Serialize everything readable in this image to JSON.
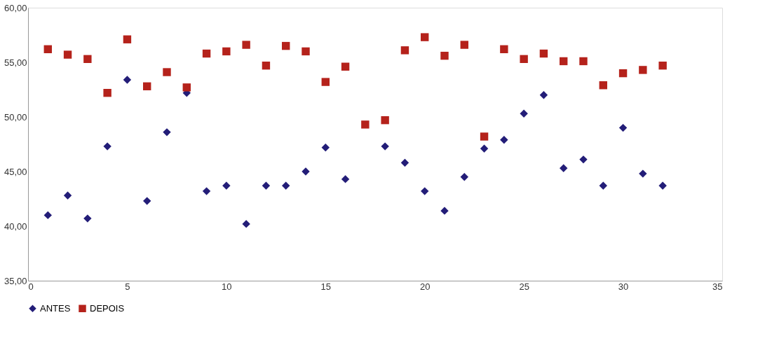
{
  "chart_data": {
    "type": "scatter",
    "x": [
      1,
      2,
      3,
      4,
      5,
      6,
      7,
      8,
      9,
      10,
      11,
      12,
      13,
      14,
      15,
      16,
      17,
      18,
      19,
      20,
      21,
      22,
      23,
      24,
      25,
      26,
      27,
      28,
      29,
      30,
      31,
      32
    ],
    "series": [
      {
        "name": "ANTES",
        "color": "#231d78",
        "marker": "diamond",
        "values": [
          41.0,
          42.8,
          40.7,
          47.3,
          53.4,
          42.3,
          48.6,
          52.2,
          43.2,
          43.7,
          40.2,
          43.7,
          43.7,
          45.0,
          47.2,
          44.3,
          null,
          47.3,
          45.8,
          43.2,
          41.4,
          44.5,
          47.1,
          47.9,
          50.3,
          52.0,
          45.3,
          46.1,
          43.7,
          49.0,
          44.8,
          43.7
        ]
      },
      {
        "name": "DEPOIS",
        "color": "#b5221b",
        "marker": "square",
        "values": [
          56.2,
          55.7,
          55.3,
          52.2,
          57.1,
          52.8,
          54.1,
          52.7,
          55.8,
          56.0,
          56.6,
          54.7,
          56.5,
          56.0,
          53.2,
          54.6,
          49.3,
          49.7,
          56.1,
          57.3,
          55.6,
          56.6,
          48.2,
          56.2,
          55.3,
          55.8,
          55.1,
          55.1,
          52.9,
          54.0,
          54.3,
          54.7
        ]
      }
    ],
    "xlim": [
      0,
      35
    ],
    "xticks": [
      0,
      5,
      10,
      15,
      20,
      25,
      30,
      35
    ],
    "ylim": [
      35,
      60
    ],
    "yticks": [
      {
        "value": 35,
        "label": "35,00"
      },
      {
        "value": 40,
        "label": "40,00"
      },
      {
        "value": 45,
        "label": "45,00"
      },
      {
        "value": 50,
        "label": "50,00"
      },
      {
        "value": 55,
        "label": "55,00"
      },
      {
        "value": 60,
        "label": "60,00"
      }
    ],
    "grid": false,
    "legend": "bottom"
  }
}
